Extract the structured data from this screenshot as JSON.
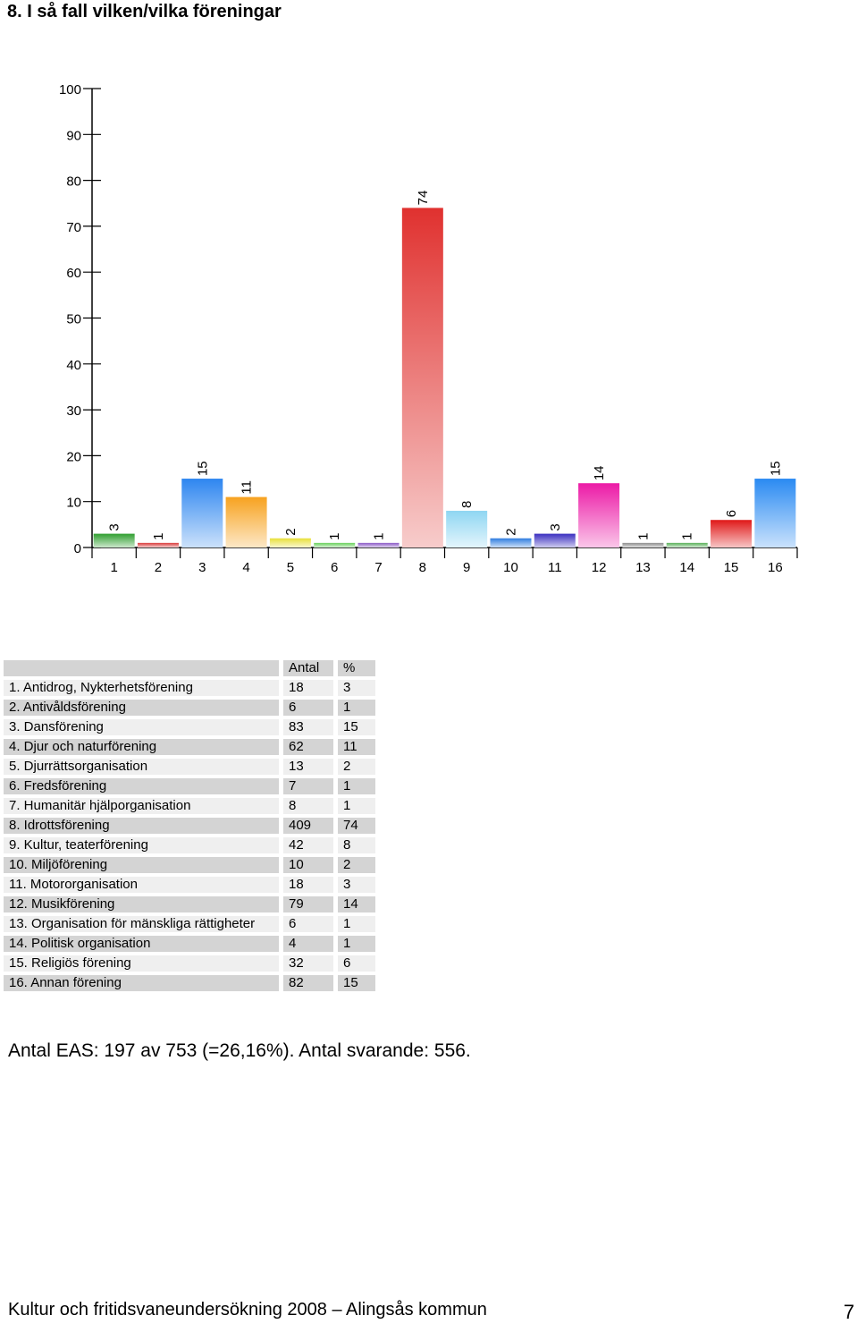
{
  "heading": "8. I så fall vilken/vilka föreningar",
  "chart_data": {
    "type": "bar",
    "categories": [
      "1",
      "2",
      "3",
      "4",
      "5",
      "6",
      "7",
      "8",
      "9",
      "10",
      "11",
      "12",
      "13",
      "14",
      "15",
      "16"
    ],
    "values": [
      3,
      1,
      15,
      11,
      2,
      1,
      1,
      74,
      8,
      2,
      3,
      14,
      1,
      1,
      6,
      15
    ],
    "yticks": [
      0,
      10,
      20,
      30,
      40,
      50,
      60,
      70,
      80,
      90,
      100
    ],
    "ylim": [
      0,
      100
    ],
    "colors": [
      "#2f9e2f",
      "#d83a3a",
      "#2e86f0",
      "#f7a21f",
      "#e8e03a",
      "#69d05c",
      "#8a58c7",
      "#e0312f",
      "#8fd6f2",
      "#2f7de0",
      "#3a2fc0",
      "#ec1aa6",
      "#8c8c8c",
      "#58b058",
      "#e01818",
      "#2a8af2"
    ]
  },
  "table": {
    "headers": [
      "",
      "Antal",
      "%"
    ],
    "rows": [
      [
        "1. Antidrog, Nykterhetsförening",
        "18",
        "3"
      ],
      [
        "2. Antivåldsförening",
        "6",
        "1"
      ],
      [
        "3. Dansförening",
        "83",
        "15"
      ],
      [
        "4. Djur och naturförening",
        "62",
        "11"
      ],
      [
        "5. Djurrättsorganisation",
        "13",
        "2"
      ],
      [
        "6. Fredsförening",
        "7",
        "1"
      ],
      [
        "7. Humanitär hjälporganisation",
        "8",
        "1"
      ],
      [
        "8. Idrottsförening",
        "409",
        "74"
      ],
      [
        "9. Kultur, teaterförening",
        "42",
        "8"
      ],
      [
        "10. Miljöförening",
        "10",
        "2"
      ],
      [
        "11. Motororganisation",
        "18",
        "3"
      ],
      [
        "12. Musikförening",
        "79",
        "14"
      ],
      [
        "13. Organisation för mänskliga rättigheter",
        "6",
        "1"
      ],
      [
        "14. Politisk organisation",
        "4",
        "1"
      ],
      [
        "15. Religiös förening",
        "32",
        "6"
      ],
      [
        "16. Annan förening",
        "82",
        "15"
      ]
    ]
  },
  "summary": "Antal EAS: 197 av 753 (=26,16%). Antal svarande:  556.",
  "footer": {
    "text": "Kultur och fritidsvaneundersökning 2008 – Alingsås kommun",
    "page_number": "7"
  }
}
